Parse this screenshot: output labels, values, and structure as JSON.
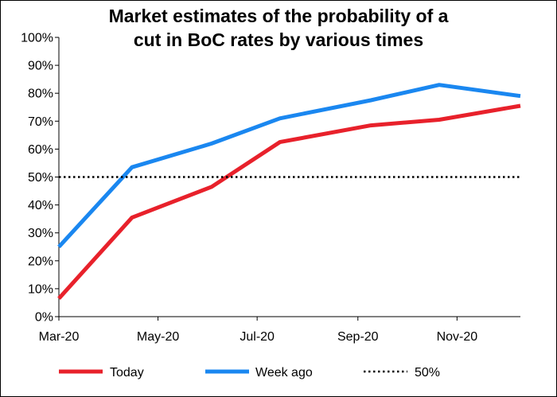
{
  "chart_data": {
    "type": "line",
    "title_lines": [
      "Market estimates of the probability of a",
      "cut in BoC rates by various times"
    ],
    "xlabel": "",
    "ylabel": "",
    "x_tick_labels": [
      "Mar-20",
      "May-20",
      "Jul-20",
      "Sep-20",
      "Nov-20"
    ],
    "x_ticks": [
      "2020-03-01",
      "2020-05-01",
      "2020-07-01",
      "2020-09-01",
      "2020-11-01"
    ],
    "xlim": [
      "2020-03-01",
      "2020-12-10"
    ],
    "ylim": [
      0,
      100
    ],
    "y_tick_labels": [
      "0%",
      "10%",
      "20%",
      "30%",
      "40%",
      "50%",
      "60%",
      "70%",
      "80%",
      "90%",
      "100%"
    ],
    "y_unit": "%",
    "grid": false,
    "legend_position": "bottom",
    "series": [
      {
        "name": "Today",
        "color": "#e8212b",
        "style": "solid",
        "points": [
          {
            "x": "2020-03-01",
            "y": 6.5
          },
          {
            "x": "2020-04-15",
            "y": 35.5
          },
          {
            "x": "2020-06-03",
            "y": 46.5
          },
          {
            "x": "2020-07-15",
            "y": 62.5
          },
          {
            "x": "2020-09-09",
            "y": 68.5
          },
          {
            "x": "2020-10-21",
            "y": 70.5
          },
          {
            "x": "2020-12-10",
            "y": 75.5
          }
        ]
      },
      {
        "name": "Week ago",
        "color": "#1a87f0",
        "style": "solid",
        "points": [
          {
            "x": "2020-03-01",
            "y": 25
          },
          {
            "x": "2020-04-15",
            "y": 53.5
          },
          {
            "x": "2020-06-03",
            "y": 62
          },
          {
            "x": "2020-07-15",
            "y": 71
          },
          {
            "x": "2020-09-09",
            "y": 77.5
          },
          {
            "x": "2020-10-21",
            "y": 83
          },
          {
            "x": "2020-12-10",
            "y": 79
          }
        ]
      },
      {
        "name": "50%",
        "color": "#000000",
        "style": "dotted",
        "points": [
          {
            "x": "2020-03-01",
            "y": 50
          },
          {
            "x": "2020-12-10",
            "y": 50
          }
        ]
      }
    ]
  }
}
